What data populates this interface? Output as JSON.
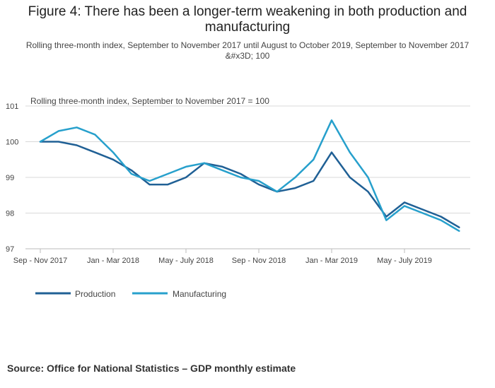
{
  "title": "Figure 4: There has been a longer-term weakening in both production and manufacturing",
  "subtitle": "Rolling three-month index, September to November 2017 until August to October 2019, September to November 2017 &#x3D; 100",
  "source": "Source: Office for National Statistics – GDP monthly estimate",
  "colors": {
    "production": "#206095",
    "manufacturing": "#27a0cc",
    "grid": "#d9d9d9",
    "axis": "#bbbbbb"
  },
  "chart_data": {
    "type": "line",
    "title": "Figure 4: There has been a longer-term weakening in both production and manufacturing",
    "ylabel": "Rolling three-month index, September to November 2017 = 100",
    "xlabel": "",
    "ylim": [
      97,
      101
    ],
    "yticks": [
      97,
      98,
      99,
      100,
      101
    ],
    "x": [
      "Sep - Nov 2017",
      "Oct - Dec 2017",
      "Nov 2017 - Jan 2018",
      "Dec 2017 - Feb 2018",
      "Jan - Mar 2018",
      "Feb - Apr 2018",
      "Mar - May 2018",
      "Apr - Jun 2018",
      "May - July 2018",
      "Jun - Aug 2018",
      "Jul - Sep 2018",
      "Aug - Oct 2018",
      "Sep - Nov 2018",
      "Oct - Dec 2018",
      "Nov 2018 - Jan 2019",
      "Dec 2018 - Feb 2019",
      "Jan - Mar 2019",
      "Feb - Apr 2019",
      "Mar - May 2019",
      "Apr - Jun 2019",
      "May - July 2019",
      "Jun - Aug 2019",
      "Jul - Sep 2019",
      "Aug - Oct 2019"
    ],
    "x_tick_labels": [
      {
        "index": 0,
        "label": "Sep - Nov 2017"
      },
      {
        "index": 4,
        "label": "Jan - Mar 2018"
      },
      {
        "index": 8,
        "label": "May - July 2018"
      },
      {
        "index": 12,
        "label": "Sep - Nov 2018"
      },
      {
        "index": 16,
        "label": "Jan - Mar 2019"
      },
      {
        "index": 20,
        "label": "May - July 2019"
      }
    ],
    "series": [
      {
        "name": "Production",
        "values": [
          100.0,
          100.0,
          99.9,
          99.7,
          99.5,
          99.2,
          98.8,
          98.8,
          99.0,
          99.4,
          99.3,
          99.1,
          98.8,
          98.6,
          98.7,
          98.9,
          99.7,
          99.0,
          98.6,
          97.9,
          98.3,
          98.1,
          97.9,
          97.6
        ]
      },
      {
        "name": "Manufacturing",
        "values": [
          100.0,
          100.3,
          100.4,
          100.2,
          99.7,
          99.1,
          98.9,
          99.1,
          99.3,
          99.4,
          99.2,
          99.0,
          98.9,
          98.6,
          99.0,
          99.5,
          100.6,
          99.7,
          99.0,
          97.8,
          98.2,
          98.0,
          97.8,
          97.5
        ]
      }
    ],
    "legend": "bottom-left",
    "grid": true
  }
}
